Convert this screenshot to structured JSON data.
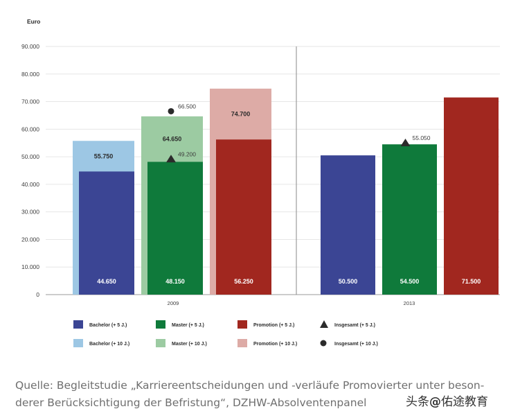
{
  "chart_data": {
    "type": "bar",
    "ylabel": "Euro",
    "ylim": [
      0,
      90000
    ],
    "yticks": [
      "0",
      "10.000",
      "20.000",
      "30.000",
      "40.000",
      "50.000",
      "60.000",
      "70.000",
      "80.000",
      "90.000"
    ],
    "groups": [
      {
        "label": "2009",
        "bars": [
          {
            "name": "Bachelor",
            "value_5": 44650,
            "value_10": 55750,
            "label_5": "44.650",
            "label_10": "55.750",
            "color_5": "#3b4594",
            "color_10": "#9dc7e4"
          },
          {
            "name": "Master",
            "value_5": 48150,
            "value_10": 64650,
            "label_5": "48.150",
            "label_10": "64.650",
            "color_5": "#0f7a3b",
            "color_10": "#9ccba2"
          },
          {
            "name": "Promotion",
            "value_5": 56250,
            "value_10": 74700,
            "label_5": "56.250",
            "label_10": "74.700",
            "color_5": "#a1271f",
            "color_10": "#ddaba6"
          }
        ],
        "markers": [
          {
            "type": "triangle",
            "bar": 1,
            "value": 49200,
            "label": "49.200"
          },
          {
            "type": "circle",
            "bar": 1,
            "value": 66500,
            "label": "66.500"
          }
        ]
      },
      {
        "label": "2013",
        "bars": [
          {
            "name": "Bachelor",
            "value_5": 50500,
            "label_5": "50.500",
            "color_5": "#3b4594"
          },
          {
            "name": "Master",
            "value_5": 54500,
            "label_5": "54.500",
            "color_5": "#0f7a3b"
          },
          {
            "name": "Promotion",
            "value_5": 71500,
            "label_5": "71.500",
            "color_5": "#a1271f"
          }
        ],
        "markers": [
          {
            "type": "triangle",
            "bar": 1,
            "value": 55050,
            "label": "55.050"
          }
        ]
      }
    ],
    "legend": [
      {
        "label": "Bachelor (+ 5 J.)",
        "kind": "square",
        "color": "#3b4594"
      },
      {
        "label": "Master (+ 5 J.)",
        "kind": "square",
        "color": "#0f7a3b"
      },
      {
        "label": "Promotion (+ 5 J.)",
        "kind": "square",
        "color": "#a1271f"
      },
      {
        "label": "Insgesamt (+ 5 J.)",
        "kind": "triangle",
        "color": "#2b2b2b"
      },
      {
        "label": "Bachelor (+ 10 J.)",
        "kind": "square",
        "color": "#9dc7e4"
      },
      {
        "label": "Master (+ 10 J.)",
        "kind": "square",
        "color": "#9ccba2"
      },
      {
        "label": "Promotion (+ 10 J.)",
        "kind": "square",
        "color": "#ddaba6"
      },
      {
        "label": "Insgesamt (+ 10 J.)",
        "kind": "circle",
        "color": "#2b2b2b"
      }
    ],
    "legend_placement": "bottom",
    "grid": true
  },
  "caption": {
    "line1": "Quelle: Begleitstudie „Karriereentscheidungen und -verläufe Promovierter unter beson-",
    "line2": "derer Berücksichtigung der Befristung“, DZHW-Absolventenpanel"
  },
  "watermark": {
    "prefix": "头条",
    "at": "@",
    "name": "佑途教育"
  }
}
